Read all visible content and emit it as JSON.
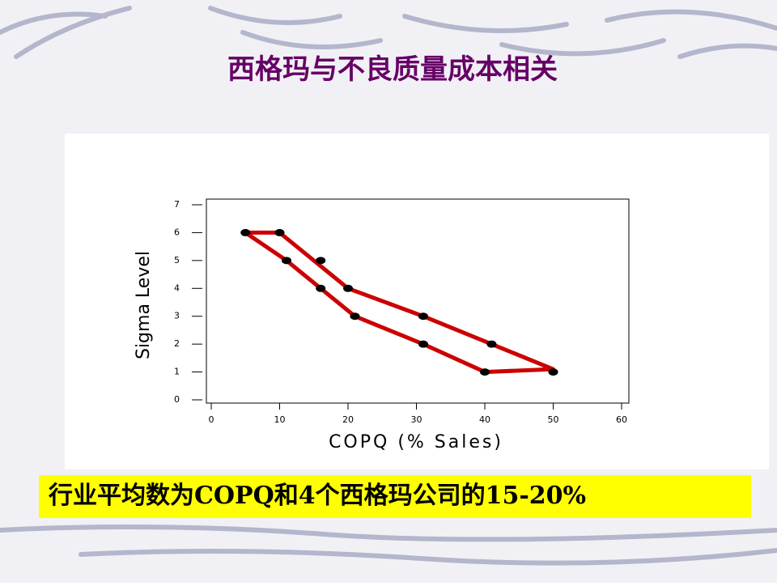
{
  "chart_data": {
    "type": "scatter",
    "title": "西格玛与不良质量成本相关",
    "x_label": "COPQ (% Sales)",
    "y_label": "Sigma Level",
    "annotation": "行业平均数为COPQ和4个西格玛公司的15-20%",
    "series": [
      {
        "color": "#000000",
        "x": [
          5,
          10,
          11,
          16,
          16,
          20,
          21,
          31,
          31,
          41,
          40,
          50
        ],
        "y": [
          6,
          6,
          5,
          5,
          4,
          4,
          3,
          3,
          2,
          2,
          1,
          1
        ]
      }
    ],
    "outline": {
      "color": "#cc0000",
      "x": [
        5,
        10,
        20,
        31,
        41,
        50,
        40,
        31,
        21,
        16,
        11
      ],
      "y": [
        6,
        6,
        4,
        3,
        2,
        1.1,
        1,
        2,
        3,
        4,
        5
      ]
    },
    "xlim": [
      0,
      60
    ],
    "ylim": [
      0,
      7
    ],
    "xticks": [
      0,
      10,
      20,
      30,
      40,
      50,
      60
    ],
    "yticks": [
      0,
      1,
      2,
      3,
      4,
      5,
      6,
      7
    ]
  }
}
